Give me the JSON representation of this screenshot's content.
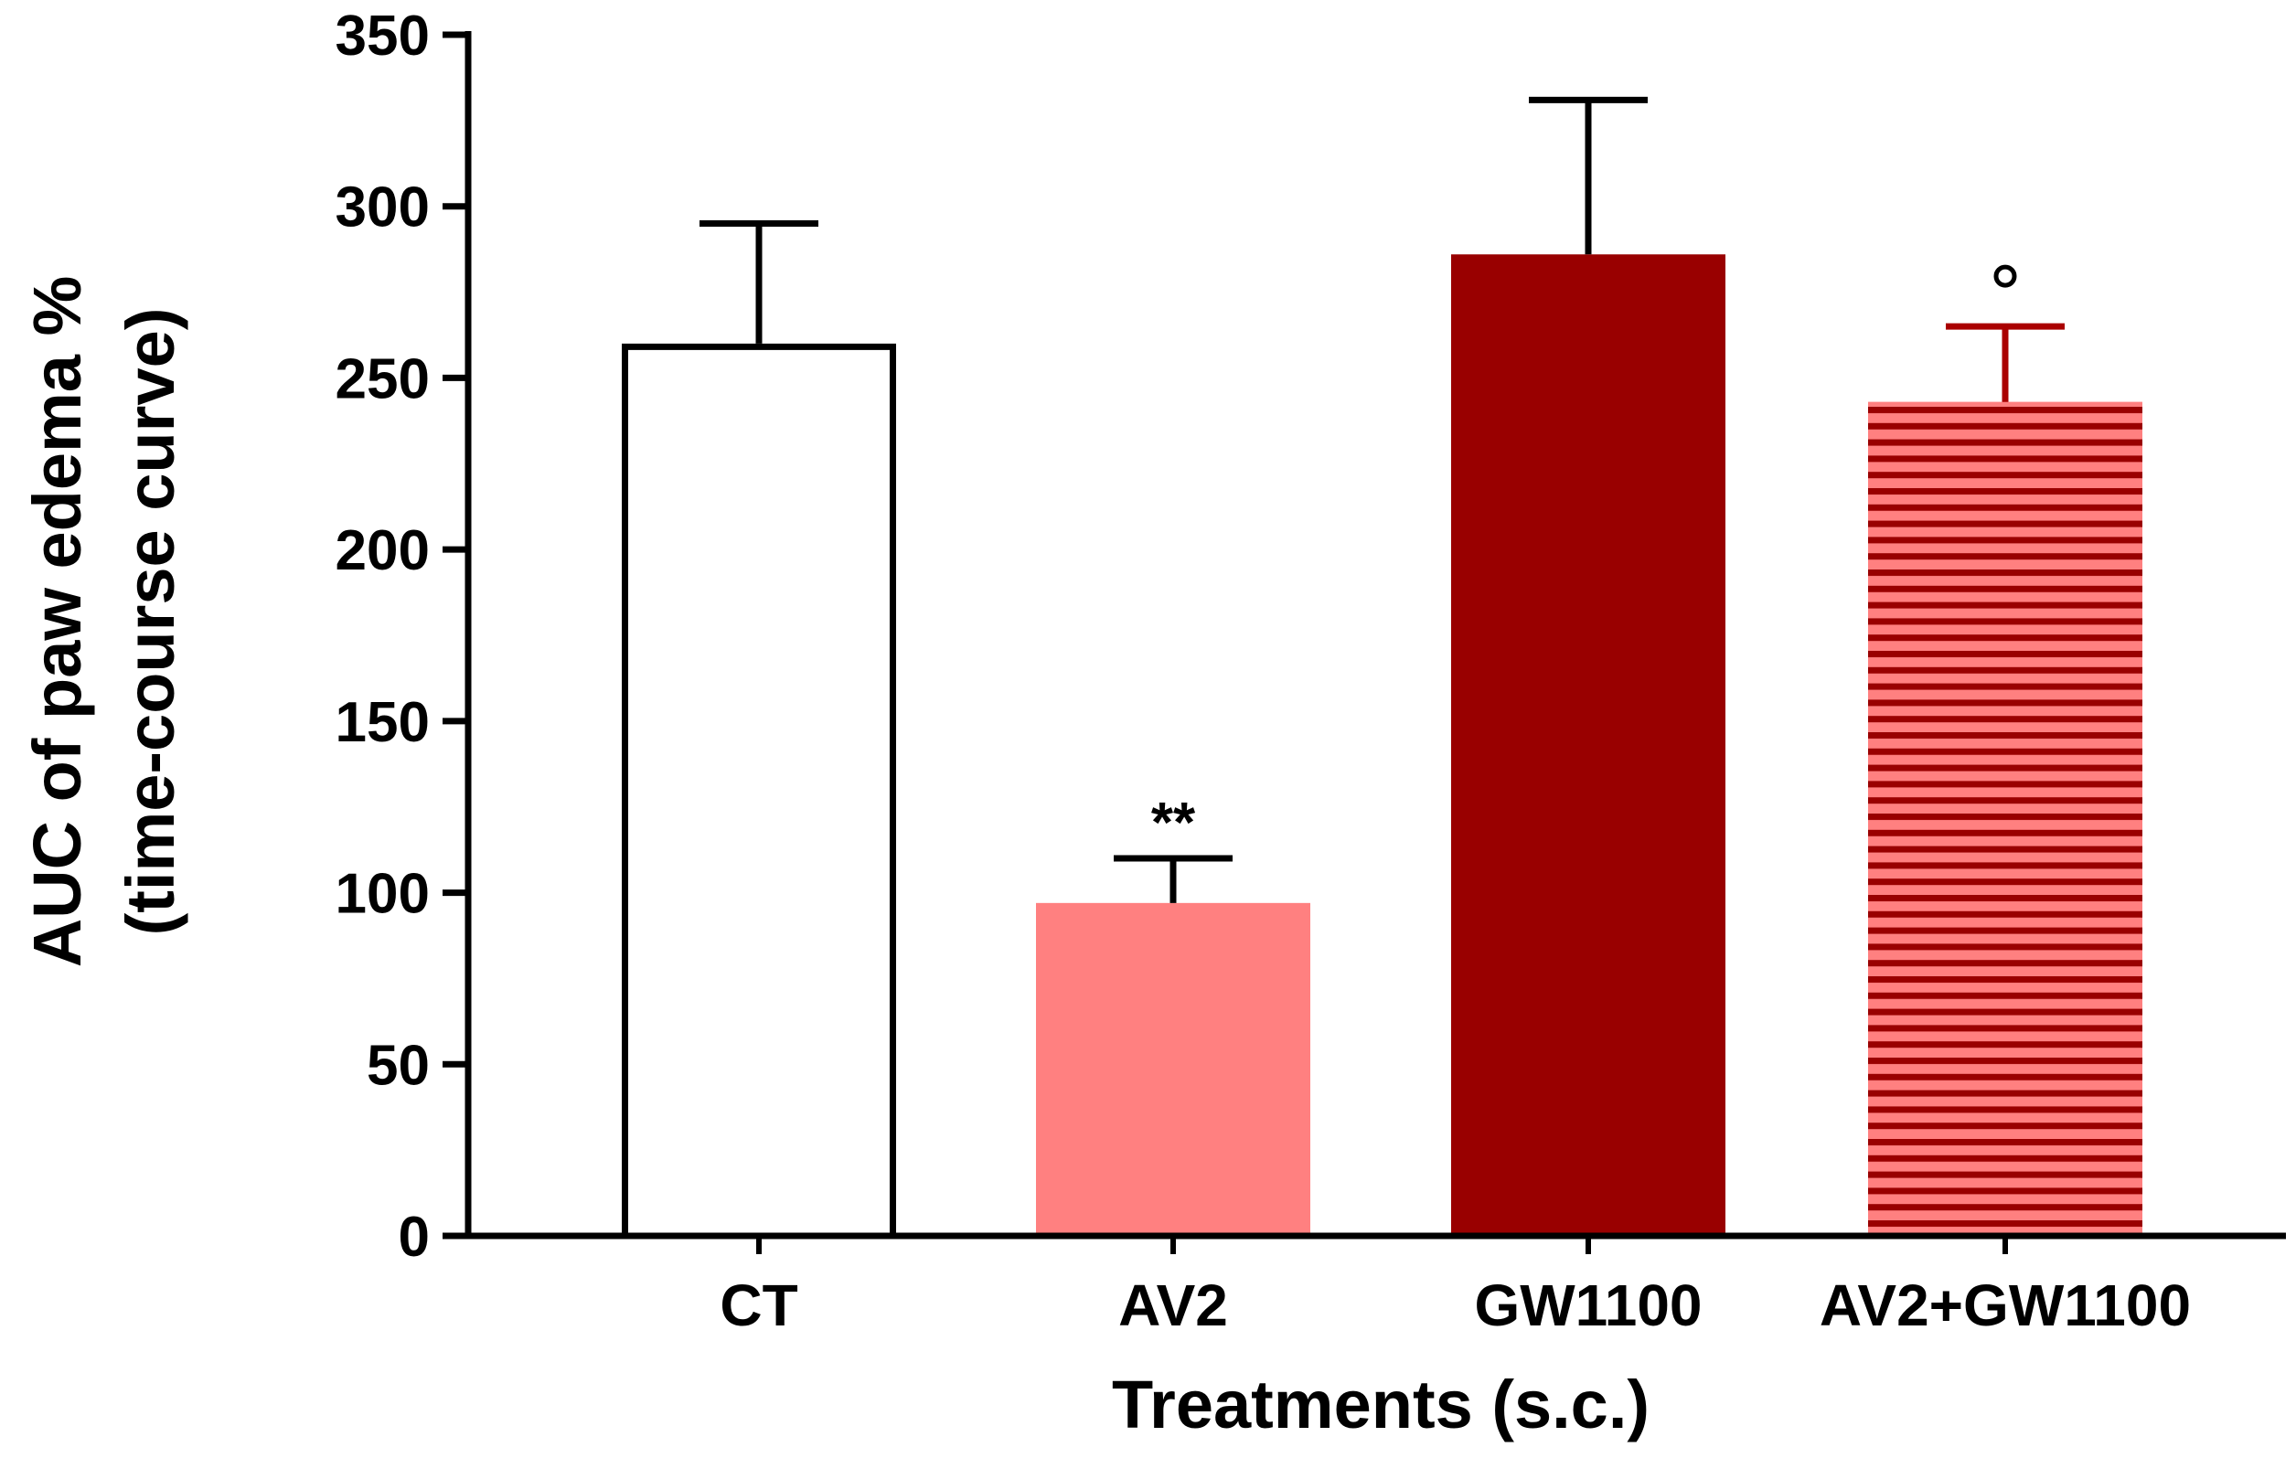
{
  "chart_data": {
    "type": "bar",
    "ylabel_line1": "AUC of paw edema %",
    "ylabel_line2": "(time-course curve)",
    "xlabel": "Treatments (s.c.)",
    "ylim": [
      0,
      350
    ],
    "yticks": [
      0,
      50,
      100,
      150,
      200,
      250,
      300,
      350
    ],
    "grid": false,
    "categories": [
      "CT",
      "AV2",
      "GW1100",
      "AV2+GW1100"
    ],
    "values": [
      260,
      97,
      286,
      243
    ],
    "error": [
      35,
      13,
      45,
      22
    ],
    "annotations": [
      "",
      "**",
      "",
      "°"
    ],
    "styles": [
      {
        "fill": "#ffffff",
        "stroke": "#000000",
        "pattern": "none",
        "error_color": "#000000"
      },
      {
        "fill": "#ff8080",
        "stroke": "none",
        "pattern": "none",
        "error_color": "#000000"
      },
      {
        "fill": "#990000",
        "stroke": "#990000",
        "pattern": "none",
        "error_color": "#000000"
      },
      {
        "fill": "#ff8080",
        "stroke": "none",
        "pattern": "horizontal-stripes",
        "stripe_color": "#990000",
        "error_color": "#aa0000"
      }
    ]
  }
}
